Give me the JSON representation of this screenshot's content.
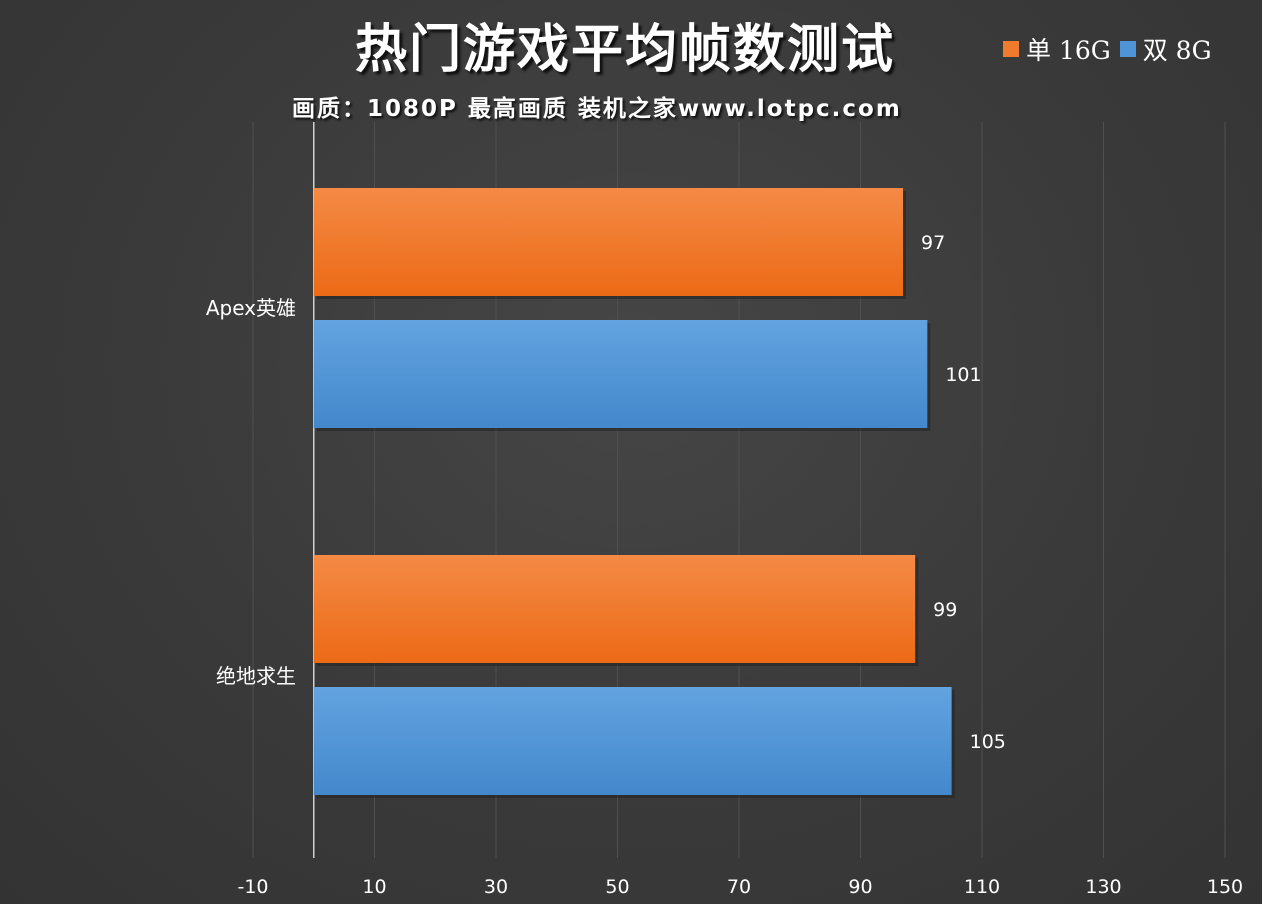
{
  "chart_data": {
    "type": "bar",
    "orientation": "horizontal",
    "title": "热门游戏平均帧数测试",
    "subtitle": "画质：1080P 最高画质 装机之家www.lotpc.com",
    "categories": [
      "Apex英雄",
      "绝地求生"
    ],
    "series": [
      {
        "name": "单 16G",
        "color": "#f07a2e",
        "values": [
          97,
          99
        ]
      },
      {
        "name": "双 8G",
        "color": "#4f94d6",
        "values": [
          101,
          105
        ]
      }
    ],
    "xlim": [
      -10,
      150
    ],
    "xticks": [
      "-10",
      "10",
      "30",
      "50",
      "70",
      "90",
      "110",
      "130",
      "150"
    ],
    "grid": true,
    "legend_position": "top-right"
  }
}
